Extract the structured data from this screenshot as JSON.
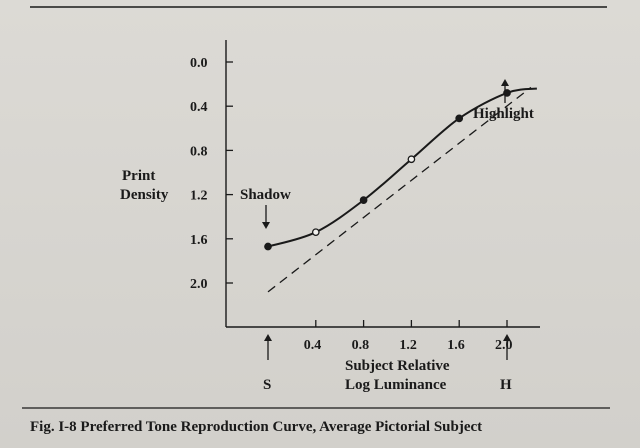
{
  "chart_data": {
    "type": "line",
    "caption": "Fig. I-8 Preferred Tone Reproduction Curve, Average Pictorial Subject",
    "ylabel_lines": [
      "Print",
      "Density"
    ],
    "xlabel_lines": [
      "Subject Relative",
      "Log Luminance"
    ],
    "yticks": [
      "0.0",
      "0.4",
      "0.8",
      "1.2",
      "1.6",
      "2.0"
    ],
    "xticks": [
      "0.4",
      "0.8",
      "1.2",
      "1.6",
      "2.0"
    ],
    "ylim": [
      0.0,
      2.25
    ],
    "xlim": [
      -0.15,
      2.35
    ],
    "y_inverted": true,
    "series": [
      {
        "style": "solid",
        "x": [
          0.0,
          0.4,
          0.8,
          1.2,
          1.6,
          2.0,
          2.25
        ],
        "y": [
          1.67,
          1.54,
          1.25,
          0.88,
          0.51,
          0.28,
          0.24
        ],
        "markers": [
          {
            "x": 0.0,
            "y": 1.67,
            "filled": true
          },
          {
            "x": 0.4,
            "y": 1.54,
            "filled": false
          },
          {
            "x": 0.8,
            "y": 1.25,
            "filled": true
          },
          {
            "x": 1.2,
            "y": 0.88,
            "filled": false
          },
          {
            "x": 1.6,
            "y": 0.51,
            "filled": true
          },
          {
            "x": 2.0,
            "y": 0.28,
            "filled": true
          }
        ]
      },
      {
        "style": "dashed",
        "x": [
          0.0,
          2.2
        ],
        "y": [
          2.08,
          0.23
        ]
      }
    ],
    "annotations": {
      "shadow": "Shadow",
      "highlight": "Highlight",
      "s_marker": "S",
      "h_marker": "H"
    }
  }
}
